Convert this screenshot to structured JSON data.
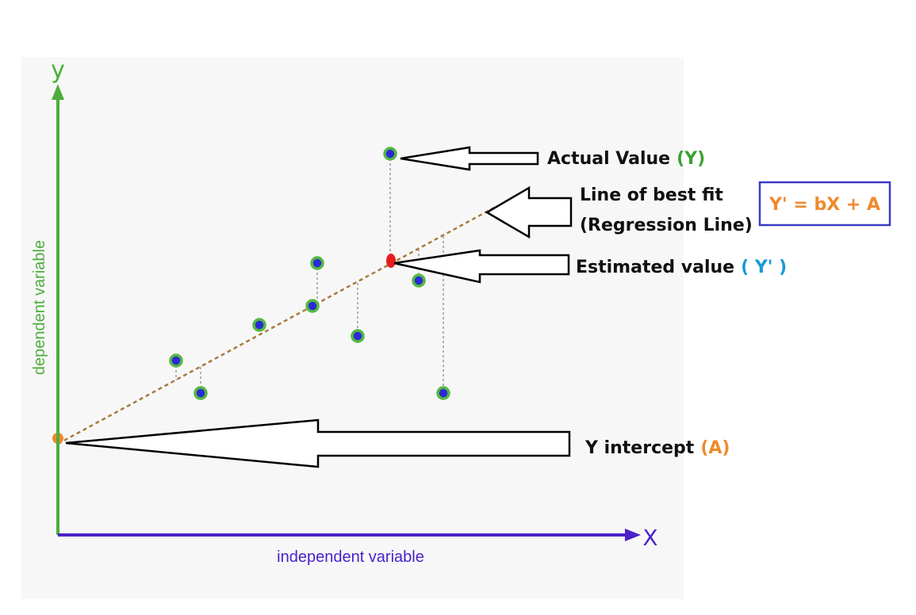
{
  "diagram": {
    "axes": {
      "y_letter": "y",
      "x_letter": "X",
      "y_label": "dependent variable",
      "x_label": "independent variable",
      "y_color": "#4cae3c",
      "x_color": "#4a22c9"
    },
    "annotations": {
      "actual_value": {
        "text": "Actual Value",
        "symbol": "(Y)",
        "symbol_color": "#3aa335"
      },
      "best_fit": {
        "line1": "Line of best fit",
        "line2": "(Regression Line)"
      },
      "estimated": {
        "text": "Estimated value",
        "symbol": "( Y' )",
        "symbol_color": "#1a9ad6"
      },
      "intercept": {
        "text": "Y intercept",
        "symbol": "(A)",
        "symbol_color": "#f08a2c"
      }
    },
    "formula": {
      "text": "Y' = bX + A",
      "text_color": "#f08a2c",
      "border_color": "#3b3bc4"
    },
    "colors": {
      "point_fill": "#2b2bd6",
      "point_ring": "#55b842",
      "regression_line": "#a67c3d",
      "intercept_marker": "#f08a2c",
      "estimate_marker": "#e81e1e",
      "residual_line": "#9a9a9a"
    },
    "icons": {
      "arrow": "hollow-left-arrow",
      "point": "data-point-dot"
    }
  }
}
